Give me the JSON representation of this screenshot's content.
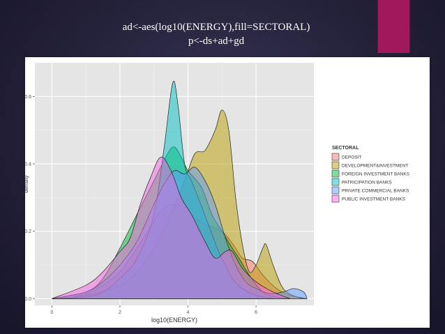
{
  "slide": {
    "title_line1": "ad<-aes(log10(ENERGY),fill=SECTORAL)",
    "title_line2": "p<-ds+ad+gd",
    "accent_color": "#a1195c",
    "background_color": "#2b2845"
  },
  "chart_data": {
    "type": "area",
    "title": "",
    "xlabel": "log10(ENERGY)",
    "ylabel": "density",
    "xlim": [
      -0.5,
      7.7
    ],
    "ylim": [
      -0.02,
      0.7
    ],
    "x_ticks": [
      0,
      2,
      4,
      6
    ],
    "x_tick_labels": [
      "0",
      "2",
      "4",
      "6"
    ],
    "y_ticks": [
      0.0,
      0.2,
      0.4,
      0.6
    ],
    "y_tick_labels": [
      "0.0",
      "0.2",
      "0.4",
      "0.6"
    ],
    "grid": true,
    "legend": {
      "title": "SECTORAL",
      "placement": "right"
    },
    "series": [
      {
        "name": "DEPOSIT",
        "color": "#f8766d",
        "points": [
          [
            0,
            0
          ],
          [
            0.5,
            0.003
          ],
          [
            1.0,
            0.015
          ],
          [
            1.5,
            0.04
          ],
          [
            2.0,
            0.08
          ],
          [
            2.5,
            0.15
          ],
          [
            3.0,
            0.23
          ],
          [
            3.3,
            0.27
          ],
          [
            3.6,
            0.28
          ],
          [
            3.9,
            0.27
          ],
          [
            4.2,
            0.24
          ],
          [
            4.5,
            0.22
          ],
          [
            4.8,
            0.21
          ],
          [
            5.1,
            0.19
          ],
          [
            5.4,
            0.15
          ],
          [
            5.6,
            0.12
          ],
          [
            5.9,
            0.11
          ],
          [
            6.2,
            0.07
          ],
          [
            6.6,
            0.03
          ],
          [
            7.0,
            0.01
          ],
          [
            7.5,
            0
          ]
        ]
      },
      {
        "name": "DEVELOPMENT&INVESTMENT",
        "color": "#b79f00",
        "points": [
          [
            0,
            0
          ],
          [
            1.0,
            0.01
          ],
          [
            2.0,
            0.04
          ],
          [
            2.5,
            0.08
          ],
          [
            3.0,
            0.15
          ],
          [
            3.5,
            0.25
          ],
          [
            3.9,
            0.35
          ],
          [
            4.2,
            0.43
          ],
          [
            4.5,
            0.44
          ],
          [
            4.8,
            0.5
          ],
          [
            5.0,
            0.56
          ],
          [
            5.2,
            0.5
          ],
          [
            5.4,
            0.3
          ],
          [
            5.6,
            0.16
          ],
          [
            5.8,
            0.08
          ],
          [
            6.0,
            0.1
          ],
          [
            6.2,
            0.15
          ],
          [
            6.3,
            0.16
          ],
          [
            6.5,
            0.1
          ],
          [
            6.8,
            0.03
          ],
          [
            7.2,
            0.005
          ],
          [
            7.5,
            0
          ]
        ]
      },
      {
        "name": "FOREIGN INVESTMENT BANKS",
        "color": "#00ba38",
        "points": [
          [
            0,
            0
          ],
          [
            1.0,
            0.02
          ],
          [
            1.5,
            0.06
          ],
          [
            2.0,
            0.15
          ],
          [
            2.5,
            0.25
          ],
          [
            3.0,
            0.35
          ],
          [
            3.4,
            0.43
          ],
          [
            3.6,
            0.45
          ],
          [
            3.8,
            0.42
          ],
          [
            4.0,
            0.38
          ],
          [
            4.4,
            0.33
          ],
          [
            4.7,
            0.25
          ],
          [
            5.0,
            0.2
          ],
          [
            5.3,
            0.15
          ],
          [
            5.5,
            0.12
          ],
          [
            5.8,
            0.07
          ],
          [
            6.2,
            0.02
          ],
          [
            6.6,
            0.005
          ],
          [
            7.0,
            0
          ]
        ]
      },
      {
        "name": "PATRICIPATION BANKS",
        "color": "#00bfc4",
        "points": [
          [
            0,
            0
          ],
          [
            1.0,
            0.005
          ],
          [
            1.5,
            0.02
          ],
          [
            2.0,
            0.06
          ],
          [
            2.5,
            0.12
          ],
          [
            3.0,
            0.25
          ],
          [
            3.3,
            0.45
          ],
          [
            3.55,
            0.64
          ],
          [
            3.7,
            0.58
          ],
          [
            3.9,
            0.4
          ],
          [
            4.1,
            0.35
          ],
          [
            4.3,
            0.3
          ],
          [
            4.6,
            0.22
          ],
          [
            4.9,
            0.14
          ],
          [
            5.1,
            0.1
          ],
          [
            5.3,
            0.06
          ],
          [
            5.6,
            0.03
          ],
          [
            6.0,
            0.01
          ],
          [
            6.5,
            0
          ]
        ]
      },
      {
        "name": "PRIVATE COMMERCIAL BANKS",
        "color": "#619cff",
        "points": [
          [
            0,
            0
          ],
          [
            1.0,
            0.02
          ],
          [
            1.5,
            0.05
          ],
          [
            2.0,
            0.1
          ],
          [
            2.5,
            0.17
          ],
          [
            3.0,
            0.28
          ],
          [
            3.3,
            0.34
          ],
          [
            3.6,
            0.38
          ],
          [
            3.9,
            0.37
          ],
          [
            4.2,
            0.39
          ],
          [
            4.5,
            0.35
          ],
          [
            4.8,
            0.28
          ],
          [
            5.1,
            0.18
          ],
          [
            5.4,
            0.1
          ],
          [
            5.7,
            0.05
          ],
          [
            6.0,
            0.03
          ],
          [
            6.4,
            0.015
          ],
          [
            6.8,
            0.02
          ],
          [
            7.1,
            0.03
          ],
          [
            7.4,
            0.02
          ],
          [
            7.5,
            0
          ]
        ]
      },
      {
        "name": "PUBLIC INVESTMENT BANKS",
        "color": "#f564e3",
        "points": [
          [
            0,
            0
          ],
          [
            1.0,
            0.04
          ],
          [
            1.5,
            0.08
          ],
          [
            2.0,
            0.14
          ],
          [
            2.3,
            0.18
          ],
          [
            2.6,
            0.28
          ],
          [
            2.9,
            0.36
          ],
          [
            3.2,
            0.42
          ],
          [
            3.5,
            0.38
          ],
          [
            3.8,
            0.3
          ],
          [
            4.1,
            0.25
          ],
          [
            4.5,
            0.17
          ],
          [
            4.8,
            0.12
          ],
          [
            5.1,
            0.14
          ],
          [
            5.3,
            0.14
          ],
          [
            5.6,
            0.09
          ],
          [
            6.0,
            0.05
          ],
          [
            6.5,
            0.02
          ],
          [
            7.0,
            0
          ]
        ]
      }
    ]
  }
}
